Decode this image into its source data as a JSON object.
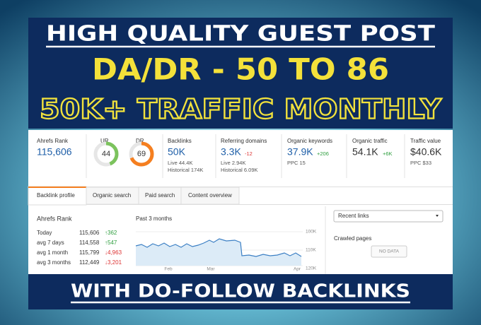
{
  "banner": {
    "line1": "HIGH QUALITY GUEST POST",
    "line2": "DA/DR - 50 TO 86",
    "line3": "50K+ TRAFFIC MONTHLY",
    "footer": "WITH DO-FOLLOW BACKLINKS"
  },
  "stats": {
    "ahrefs_rank": {
      "label": "Ahrefs Rank",
      "value": "115,606"
    },
    "gauges": [
      {
        "label": "UR",
        "value": 44,
        "color": "#7cc35d"
      },
      {
        "label": "DR",
        "value": 69,
        "color": "#f57f20"
      }
    ],
    "backlinks": {
      "label": "Backlinks",
      "value": "50K",
      "sub": [
        "Live 44.4K",
        "Historical 174K"
      ]
    },
    "referring_domains": {
      "label": "Referring domains",
      "value": "3.3K",
      "change": "-12",
      "sub": [
        "Live 2.94K",
        "Historical 6.09K"
      ]
    },
    "organic_keywords": {
      "label": "Organic keywords",
      "value": "37.9K",
      "change": "+206",
      "sub": [
        "PPC 15"
      ]
    },
    "organic_traffic": {
      "label": "Organic traffic",
      "value": "54.1K",
      "change": "+6K"
    },
    "traffic_value": {
      "label": "Traffic value",
      "value": "$40.6K",
      "sub": [
        "PPC $33"
      ]
    }
  },
  "tabs": [
    "Backlink profile",
    "Organic search",
    "Paid search",
    "Content overview"
  ],
  "rank_panel": {
    "title": "Ahrefs Rank",
    "rows": [
      [
        "Today",
        "115,606",
        "↑362"
      ],
      [
        "avg 7 days",
        "114,558",
        "↑547"
      ],
      [
        "avg 1 month",
        "115,799",
        "↓4,963"
      ],
      [
        "avg 3 months",
        "112,449",
        "↓3,201"
      ]
    ]
  },
  "chart": {
    "title": "Past 3 months",
    "y_labels": [
      "100K",
      "110K",
      "120K"
    ],
    "x_labels": [
      "Feb",
      "Mar",
      "Apr"
    ]
  },
  "side": {
    "dropdown": "Recent links",
    "crawled": "Crawled pages",
    "no_data": "NO DATA"
  }
}
